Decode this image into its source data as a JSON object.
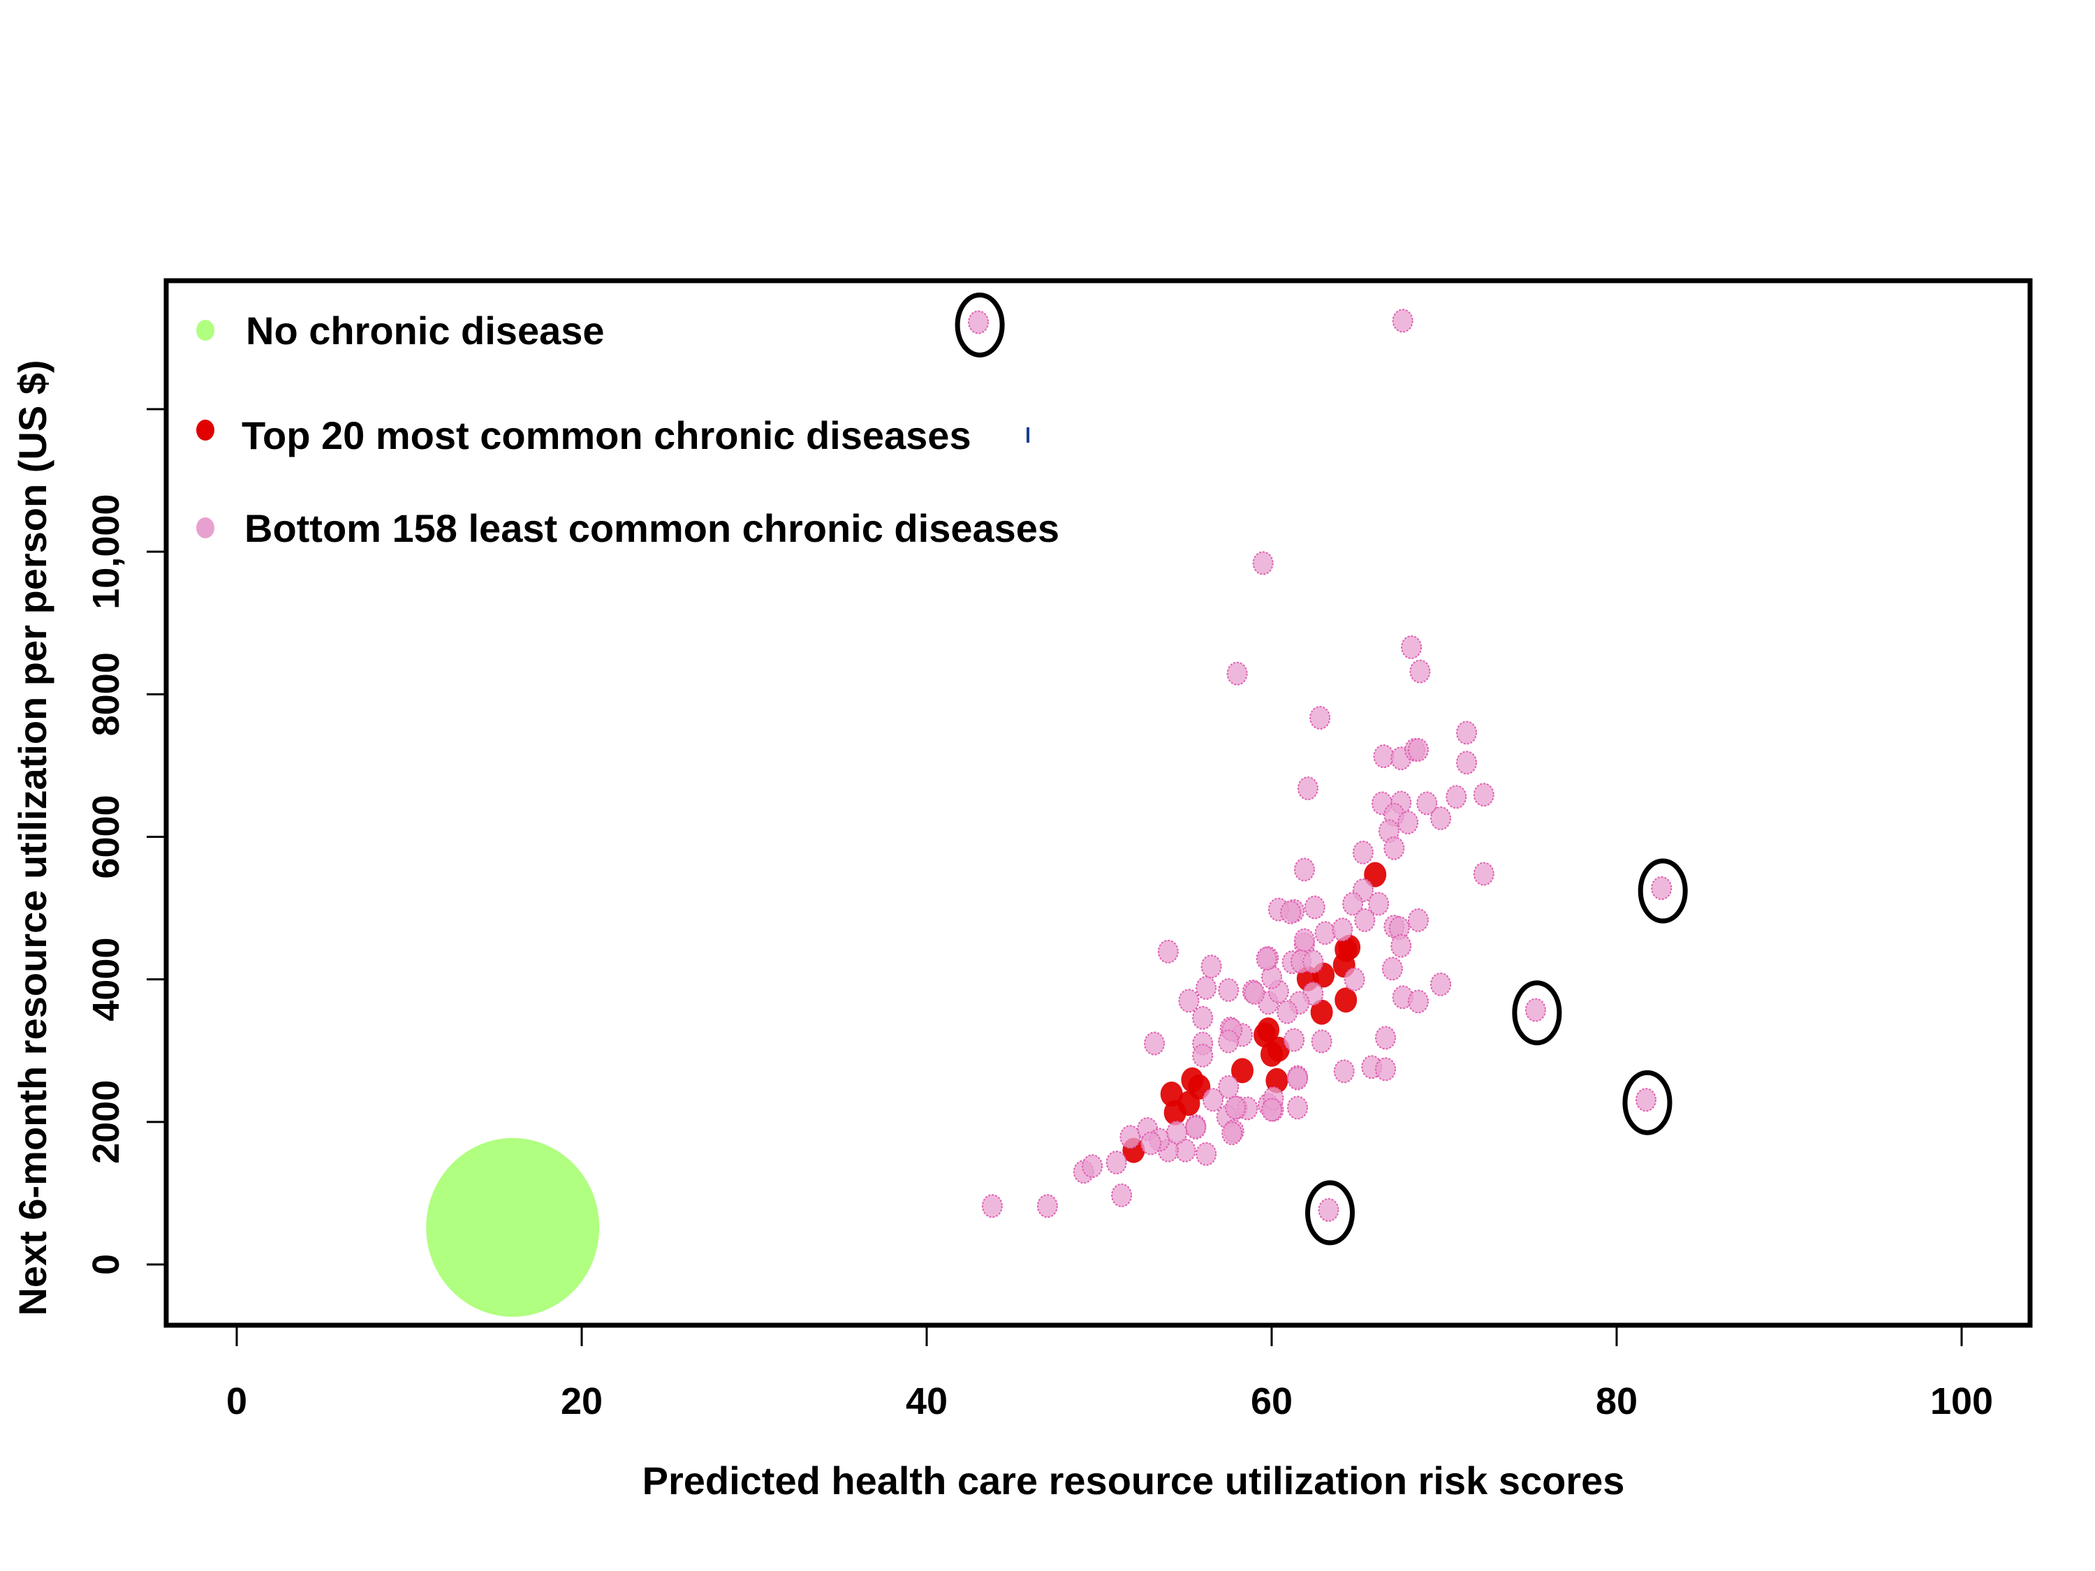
{
  "chart_data": {
    "type": "scatter",
    "title": "",
    "xlabel": "Predicted health care resource utilization risk scores",
    "ylabel": "Next 6-month resource utilization per person (US $)",
    "xlim": [
      -4,
      104
    ],
    "ylim": [
      -900,
      14000
    ],
    "x_ticks": [
      0,
      20,
      40,
      60,
      80,
      100
    ],
    "x_tick_labels": [
      "0",
      "20",
      "40",
      "60",
      "80",
      "100"
    ],
    "y_ticks": [
      0,
      2000,
      4000,
      6000,
      8000,
      10000,
      12000
    ],
    "y_tick_labels": [
      "0",
      "2000",
      "4000",
      "6000",
      "8000",
      "10,000",
      ""
    ],
    "grid": false,
    "legend_position": "top-left",
    "legend": [
      {
        "label": "No chronic disease",
        "color": "#b0ff80"
      },
      {
        "label": "Top 20 most common chronic diseases",
        "color": "#e00000"
      },
      {
        "label": "Bottom 158 least common chronic diseases",
        "color": "#e8a0d0"
      }
    ],
    "series": [
      {
        "name": "No chronic disease",
        "color": "#b0ff80",
        "marker_size": "very large",
        "points": [
          [
            16.0,
            520
          ]
        ]
      },
      {
        "name": "Top 20 most common chronic diseases",
        "color": "#e00000",
        "marker_size": "large",
        "points": [
          [
            66.0,
            5470
          ],
          [
            64.5,
            4450
          ],
          [
            64.3,
            4420
          ],
          [
            64.2,
            4200
          ],
          [
            62.1,
            4010
          ],
          [
            63.0,
            4060
          ],
          [
            64.3,
            3710
          ],
          [
            62.9,
            3540
          ],
          [
            59.8,
            3290
          ],
          [
            59.6,
            3220
          ],
          [
            60.0,
            2950
          ],
          [
            60.4,
            3020
          ],
          [
            58.3,
            2720
          ],
          [
            60.3,
            2580
          ],
          [
            55.4,
            2590
          ],
          [
            54.2,
            2390
          ],
          [
            55.8,
            2490
          ],
          [
            55.2,
            2260
          ],
          [
            54.4,
            2130
          ],
          [
            52.0,
            1600
          ]
        ]
      },
      {
        "name": "Bottom 158 least common chronic diseases",
        "color": "#e8a0d0",
        "edge_color": "#e060b0",
        "marker_size": "medium",
        "points": [
          [
            43.0,
            13220
          ],
          [
            67.6,
            13240
          ],
          [
            59.5,
            9840
          ],
          [
            58.0,
            8290
          ],
          [
            68.1,
            8660
          ],
          [
            68.6,
            8320
          ],
          [
            62.8,
            7670
          ],
          [
            71.3,
            7460
          ],
          [
            71.3,
            7040
          ],
          [
            66.5,
            7130
          ],
          [
            67.5,
            7100
          ],
          [
            68.3,
            7220
          ],
          [
            68.5,
            7220
          ],
          [
            62.1,
            6680
          ],
          [
            66.4,
            6470
          ],
          [
            67.5,
            6480
          ],
          [
            69.0,
            6470
          ],
          [
            70.7,
            6560
          ],
          [
            72.3,
            6590
          ],
          [
            67.1,
            6310
          ],
          [
            67.9,
            6200
          ],
          [
            69.8,
            6260
          ],
          [
            66.8,
            6080
          ],
          [
            67.1,
            5840
          ],
          [
            65.3,
            5780
          ],
          [
            61.9,
            5540
          ],
          [
            72.3,
            5480
          ],
          [
            65.3,
            5250
          ],
          [
            64.7,
            5060
          ],
          [
            66.2,
            5060
          ],
          [
            65.4,
            4830
          ],
          [
            62.5,
            5010
          ],
          [
            61.3,
            4960
          ],
          [
            60.4,
            4980
          ],
          [
            61.1,
            4940
          ],
          [
            63.1,
            4650
          ],
          [
            64.1,
            4700
          ],
          [
            67.1,
            4740
          ],
          [
            67.4,
            4720
          ],
          [
            68.5,
            4830
          ],
          [
            67.5,
            4470
          ],
          [
            67.0,
            4150
          ],
          [
            69.8,
            3930
          ],
          [
            67.6,
            3750
          ],
          [
            68.5,
            3690
          ],
          [
            66.6,
            3180
          ],
          [
            65.8,
            2770
          ],
          [
            66.6,
            2740
          ],
          [
            64.2,
            2710
          ],
          [
            61.9,
            4490
          ],
          [
            61.9,
            4550
          ],
          [
            64.8,
            4000
          ],
          [
            62.9,
            3130
          ],
          [
            61.5,
            2630
          ],
          [
            61.3,
            3150
          ],
          [
            62.4,
            3800
          ],
          [
            61.6,
            3670
          ],
          [
            60.9,
            3540
          ],
          [
            59.8,
            3670
          ],
          [
            60.4,
            3830
          ],
          [
            58.9,
            3830
          ],
          [
            60.0,
            4030
          ],
          [
            59.8,
            4300
          ],
          [
            61.2,
            4240
          ],
          [
            61.7,
            4250
          ],
          [
            62.4,
            4250
          ],
          [
            54.0,
            4390
          ],
          [
            56.5,
            4180
          ],
          [
            56.2,
            3880
          ],
          [
            57.5,
            3850
          ],
          [
            55.2,
            3700
          ],
          [
            56.0,
            3460
          ],
          [
            59.7,
            4290
          ],
          [
            59.0,
            3810
          ],
          [
            57.6,
            3310
          ],
          [
            58.3,
            3220
          ],
          [
            56.0,
            3100
          ],
          [
            56.0,
            2930
          ],
          [
            53.2,
            3100
          ],
          [
            57.5,
            2490
          ],
          [
            56.6,
            2310
          ],
          [
            58.0,
            2200
          ],
          [
            57.4,
            2070
          ],
          [
            61.5,
            2610
          ],
          [
            61.5,
            2200
          ],
          [
            59.8,
            2240
          ],
          [
            60.1,
            2170
          ],
          [
            55.6,
            1940
          ],
          [
            57.8,
            1870
          ],
          [
            57.7,
            1840
          ],
          [
            57.7,
            3290
          ],
          [
            57.5,
            3130
          ],
          [
            60.1,
            2330
          ],
          [
            60.0,
            2170
          ],
          [
            58.6,
            2190
          ],
          [
            57.9,
            2200
          ],
          [
            43.8,
            820
          ],
          [
            47.0,
            820
          ],
          [
            49.1,
            1300
          ],
          [
            49.6,
            1380
          ],
          [
            51.0,
            1430
          ],
          [
            51.3,
            970
          ],
          [
            51.8,
            1790
          ],
          [
            52.8,
            1900
          ],
          [
            55.6,
            1920
          ],
          [
            55.0,
            1600
          ],
          [
            56.2,
            1550
          ],
          [
            54.0,
            1600
          ],
          [
            53.5,
            1750
          ],
          [
            54.5,
            1850
          ],
          [
            53.0,
            1700
          ],
          [
            63.3,
            765
          ],
          [
            75.3,
            3570
          ],
          [
            81.7,
            2310
          ],
          [
            82.6,
            5280
          ]
        ]
      }
    ],
    "annotations": [
      {
        "type": "ellipse-highlight",
        "point": [
          43.0,
          13220
        ]
      },
      {
        "type": "ellipse-highlight",
        "point": [
          82.6,
          5280
        ]
      },
      {
        "type": "ellipse-highlight",
        "point": [
          75.3,
          3570
        ]
      },
      {
        "type": "ellipse-highlight",
        "point": [
          81.7,
          2310
        ]
      },
      {
        "type": "ellipse-highlight",
        "point": [
          63.3,
          765
        ]
      }
    ]
  }
}
